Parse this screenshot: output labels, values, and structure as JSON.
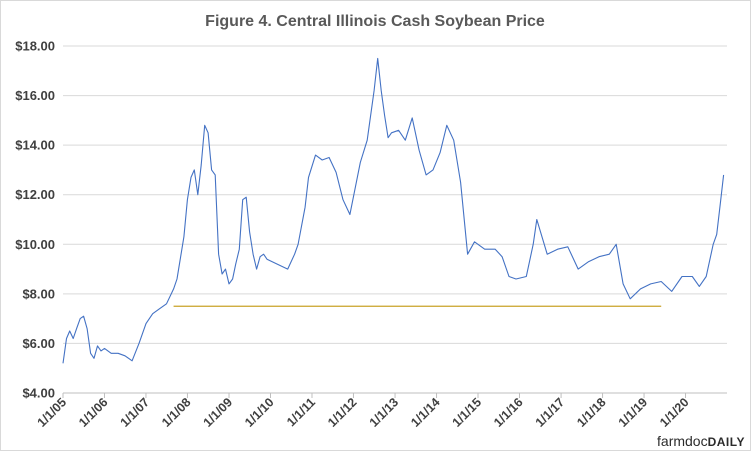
{
  "chart_data": {
    "type": "line",
    "title": "Figure 4. Central Illinois  Cash Soybean Price",
    "xlabel": "",
    "ylabel": "",
    "ylim": [
      4,
      18
    ],
    "xlim": [
      "2005-01-01",
      "2020-12-31"
    ],
    "yticks": [
      "$4.00",
      "$6.00",
      "$8.00",
      "$10.00",
      "$12.00",
      "$14.00",
      "$16.00",
      "$18.00"
    ],
    "xticks": [
      "1/1/05",
      "1/1/06",
      "1/1/07",
      "1/1/08",
      "1/1/09",
      "1/1/10",
      "1/1/11",
      "1/1/12",
      "1/1/13",
      "1/1/14",
      "1/1/15",
      "1/1/16",
      "1/1/17",
      "1/1/18",
      "1/1/19",
      "1/1/20"
    ],
    "grid": true,
    "series_color": "#4472c4",
    "series": [
      {
        "x": [
          "2005-01-01",
          "2005-02-01",
          "2005-03-01",
          "2005-04-01",
          "2005-05-01",
          "2005-06-01",
          "2005-07-01",
          "2005-08-01",
          "2005-09-01",
          "2005-10-01",
          "2005-11-01",
          "2005-12-01",
          "2006-01-01",
          "2006-03-01",
          "2006-05-01",
          "2006-07-01",
          "2006-09-01",
          "2006-11-01",
          "2007-01-01",
          "2007-03-01",
          "2007-05-01",
          "2007-07-01",
          "2007-09-01",
          "2007-10-01",
          "2007-12-01",
          "2008-01-01",
          "2008-02-01",
          "2008-03-01",
          "2008-04-01",
          "2008-05-01",
          "2008-06-01",
          "2008-07-01",
          "2008-08-01",
          "2008-09-01",
          "2008-10-01",
          "2008-11-01",
          "2008-12-01",
          "2009-01-01",
          "2009-02-01",
          "2009-03-01",
          "2009-04-01",
          "2009-05-01",
          "2009-06-01",
          "2009-07-01",
          "2009-08-01",
          "2009-09-01",
          "2009-10-01",
          "2009-11-01",
          "2009-12-01",
          "2010-03-01",
          "2010-06-01",
          "2010-08-01",
          "2010-09-01",
          "2010-11-01",
          "2010-12-01",
          "2011-02-01",
          "2011-04-01",
          "2011-06-01",
          "2011-08-01",
          "2011-10-01",
          "2011-12-01",
          "2012-03-01",
          "2012-05-01",
          "2012-07-01",
          "2012-08-01",
          "2012-09-01",
          "2012-10-01",
          "2012-11-01",
          "2012-12-01",
          "2013-02-01",
          "2013-04-01",
          "2013-06-01",
          "2013-08-01",
          "2013-10-01",
          "2013-12-01",
          "2014-02-01",
          "2014-04-01",
          "2014-06-01",
          "2014-08-01",
          "2014-10-01",
          "2014-12-01",
          "2015-03-01",
          "2015-06-01",
          "2015-08-01",
          "2015-10-01",
          "2015-12-01",
          "2016-03-01",
          "2016-05-01",
          "2016-06-01",
          "2016-09-01",
          "2016-12-01",
          "2017-03-01",
          "2017-06-01",
          "2017-09-01",
          "2017-12-01",
          "2018-03-01",
          "2018-05-01",
          "2018-07-01",
          "2018-09-01",
          "2018-12-01",
          "2019-03-01",
          "2019-06-01",
          "2019-09-01",
          "2019-12-01",
          "2020-03-01",
          "2020-05-01",
          "2020-07-01",
          "2020-09-01",
          "2020-10-01",
          "2020-11-01",
          "2020-12-01"
        ],
        "y": [
          5.2,
          6.2,
          6.5,
          6.2,
          6.6,
          7.0,
          7.1,
          6.6,
          5.6,
          5.4,
          5.9,
          5.7,
          5.8,
          5.6,
          5.6,
          5.5,
          5.3,
          6.0,
          6.8,
          7.2,
          7.4,
          7.6,
          8.2,
          8.6,
          10.3,
          11.8,
          12.7,
          13.0,
          12.0,
          13.2,
          14.8,
          14.5,
          13.0,
          12.8,
          9.6,
          8.8,
          9.0,
          8.4,
          8.6,
          9.2,
          9.8,
          11.8,
          11.9,
          10.5,
          9.6,
          9.0,
          9.5,
          9.6,
          9.4,
          9.2,
          9.0,
          9.6,
          10.0,
          11.5,
          12.7,
          13.6,
          13.4,
          13.5,
          12.9,
          11.8,
          11.2,
          13.3,
          14.2,
          16.2,
          17.5,
          16.2,
          15.2,
          14.3,
          14.5,
          14.6,
          14.2,
          15.1,
          13.8,
          12.8,
          13.0,
          13.7,
          14.8,
          14.2,
          12.5,
          9.6,
          10.1,
          9.8,
          9.8,
          9.5,
          8.7,
          8.6,
          8.7,
          10.0,
          11.0,
          9.6,
          9.8,
          9.9,
          9.0,
          9.3,
          9.5,
          9.6,
          10.0,
          8.4,
          7.8,
          8.2,
          8.4,
          8.5,
          8.1,
          8.7,
          8.7,
          8.3,
          8.7,
          10.0,
          10.4,
          11.6,
          12.8
        ]
      }
    ],
    "reference_line": {
      "from": "2007-09-01",
      "to": "2019-06-01",
      "y": 7.5,
      "color": "#c9a227"
    }
  },
  "brand": {
    "part1": "farmdoc",
    "part2": "DAILY"
  }
}
